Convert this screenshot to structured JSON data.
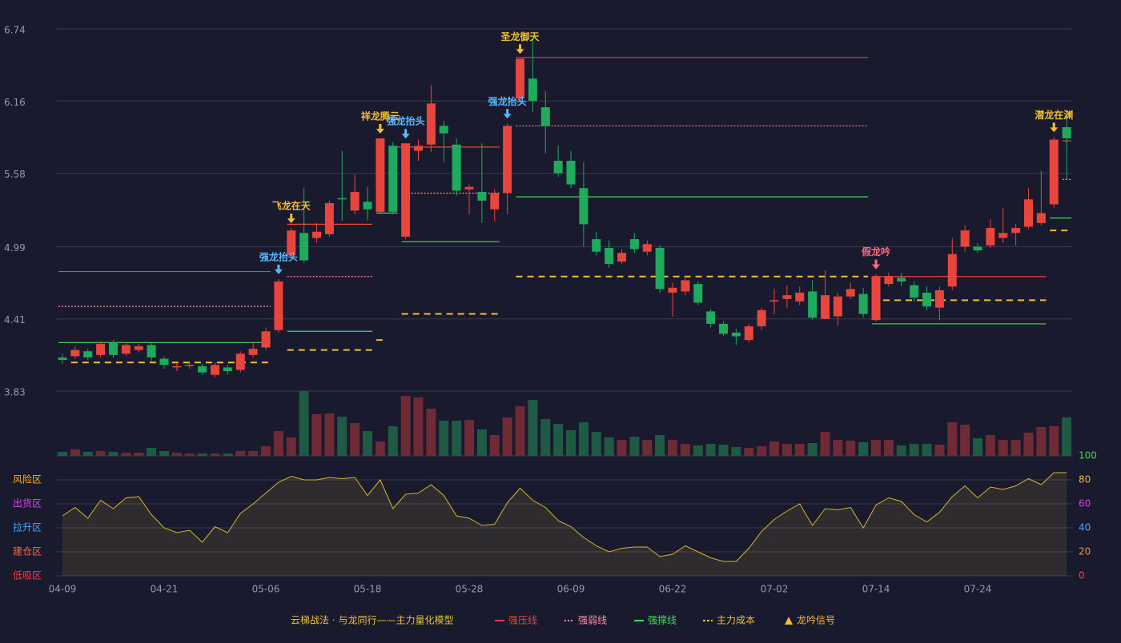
{
  "chart_data": {
    "type": "candlestick",
    "ylim": [
      3.83,
      6.74
    ],
    "yticks": [
      3.83,
      4.41,
      4.99,
      5.58,
      6.16,
      6.74
    ],
    "categories": [
      "04-09",
      null,
      null,
      null,
      null,
      null,
      null,
      null,
      "04-21",
      null,
      null,
      null,
      null,
      null,
      null,
      null,
      "05-06",
      null,
      null,
      null,
      null,
      null,
      null,
      null,
      "05-18",
      null,
      null,
      null,
      null,
      null,
      null,
      null,
      "05-28",
      null,
      null,
      null,
      null,
      null,
      null,
      null,
      "06-09",
      null,
      null,
      null,
      null,
      null,
      null,
      null,
      "06-22",
      null,
      null,
      null,
      null,
      null,
      null,
      null,
      "07-02",
      null,
      null,
      null,
      null,
      null,
      null,
      null,
      "07-14",
      null,
      null,
      null,
      null,
      null,
      null,
      null,
      "07-24",
      null,
      null,
      null,
      null,
      null,
      null,
      null
    ],
    "open": [
      4.1,
      4.11,
      4.15,
      4.12,
      4.22,
      4.13,
      4.16,
      4.2,
      4.09,
      4.02,
      4.03,
      4.03,
      3.96,
      4.02,
      4.0,
      4.12,
      4.18,
      4.32,
      4.92,
      5.1,
      5.06,
      5.09,
      5.38,
      5.28,
      5.35,
      5.27,
      5.8,
      5.07,
      5.76,
      5.81,
      5.96,
      5.81,
      5.45,
      5.43,
      5.29,
      5.42,
      6.18,
      6.34,
      6.11,
      5.68,
      5.68,
      5.46,
      5.05,
      4.98,
      4.87,
      5.05,
      4.95,
      4.98,
      4.62,
      4.63,
      4.69,
      4.47,
      4.37,
      4.3,
      4.24,
      4.35,
      4.55,
      4.57,
      4.55,
      4.63,
      4.41,
      4.43,
      4.59,
      4.61,
      4.4,
      4.69,
      4.74,
      4.68,
      4.62,
      4.5,
      4.67,
      4.99,
      4.99,
      5.0,
      5.06,
      5.1,
      5.15,
      5.18,
      5.33,
      5.95
    ],
    "high": [
      4.13,
      4.19,
      4.17,
      4.23,
      4.24,
      4.22,
      4.21,
      4.22,
      4.11,
      4.05,
      4.06,
      4.05,
      4.06,
      4.04,
      4.15,
      4.22,
      4.34,
      4.73,
      5.14,
      5.46,
      5.18,
      5.36,
      5.76,
      5.57,
      5.47,
      5.86,
      5.83,
      5.82,
      5.85,
      6.29,
      6.0,
      5.86,
      5.49,
      5.82,
      5.45,
      5.98,
      6.5,
      6.66,
      6.24,
      5.8,
      5.76,
      5.67,
      5.11,
      5.04,
      4.97,
      5.1,
      5.04,
      5.0,
      4.7,
      4.76,
      4.71,
      4.49,
      4.39,
      4.33,
      4.37,
      4.5,
      4.65,
      4.68,
      4.67,
      4.72,
      4.8,
      4.62,
      4.7,
      4.66,
      4.77,
      4.78,
      4.78,
      4.71,
      4.67,
      4.67,
      5.06,
      5.16,
      5.02,
      5.21,
      5.3,
      5.17,
      5.46,
      5.6,
      5.87,
      6.05
    ],
    "low": [
      4.05,
      4.09,
      4.08,
      4.1,
      4.1,
      4.11,
      4.14,
      4.07,
      4.01,
      3.99,
      4.01,
      3.96,
      3.94,
      3.96,
      3.98,
      4.1,
      4.16,
      4.3,
      4.89,
      4.86,
      5.02,
      5.07,
      5.2,
      5.25,
      5.2,
      5.25,
      5.25,
      5.05,
      5.68,
      5.75,
      5.67,
      5.4,
      5.25,
      5.18,
      5.19,
      5.25,
      6.15,
      6.07,
      5.74,
      5.55,
      5.46,
      4.99,
      4.92,
      4.82,
      4.85,
      4.94,
      4.92,
      4.62,
      4.43,
      4.6,
      4.52,
      4.34,
      4.27,
      4.2,
      4.22,
      4.32,
      4.45,
      4.5,
      4.52,
      4.4,
      4.41,
      4.36,
      4.57,
      4.42,
      4.39,
      4.67,
      4.67,
      4.55,
      4.48,
      4.4,
      4.64,
      4.95,
      4.94,
      4.98,
      5.02,
      5.0,
      5.13,
      5.16,
      5.3,
      5.53
    ],
    "close": [
      4.08,
      4.16,
      4.1,
      4.21,
      4.12,
      4.2,
      4.19,
      4.1,
      4.04,
      4.03,
      4.04,
      3.98,
      4.04,
      3.99,
      4.13,
      4.17,
      4.31,
      4.71,
      5.12,
      4.88,
      5.11,
      5.34,
      5.37,
      5.43,
      5.29,
      5.86,
      5.27,
      5.82,
      5.8,
      6.14,
      5.9,
      5.44,
      5.47,
      5.36,
      5.42,
      5.96,
      6.5,
      6.16,
      5.96,
      5.58,
      5.49,
      5.17,
      4.95,
      4.85,
      4.94,
      4.97,
      5.01,
      4.65,
      4.66,
      4.72,
      4.54,
      4.37,
      4.29,
      4.27,
      4.35,
      4.48,
      4.56,
      4.6,
      4.62,
      4.42,
      4.6,
      4.59,
      4.65,
      4.45,
      4.75,
      4.75,
      4.71,
      4.58,
      4.51,
      4.64,
      4.93,
      5.12,
      4.96,
      5.14,
      5.1,
      5.14,
      5.37,
      5.26,
      5.85,
      5.86
    ],
    "up_color": "#e8453c",
    "down_color": "#1fab5e",
    "volume_up_color": "#6e2b36",
    "volume_down_color": "#1f5a45",
    "volume_ylim": [
      0,
      81
    ],
    "volume": [
      5,
      8,
      5,
      6,
      5,
      4,
      4,
      10,
      6,
      4,
      3,
      3,
      3,
      3,
      6,
      6,
      12,
      31,
      23,
      81,
      52,
      53,
      49,
      41,
      31,
      18,
      37,
      75,
      73,
      59,
      44,
      44,
      45,
      33,
      26,
      48,
      62,
      70,
      46,
      40,
      32,
      42,
      30,
      23,
      20,
      24,
      20,
      26,
      20,
      15,
      13,
      15,
      14,
      11,
      10,
      12,
      18,
      15,
      15,
      16,
      30,
      20,
      19,
      17,
      20,
      20,
      13,
      15,
      15,
      14,
      42,
      39,
      22,
      26,
      20,
      20,
      29,
      36,
      37,
      48
    ],
    "indicator_ylim": [
      0,
      100
    ],
    "indicator_ticks": [
      0,
      20,
      40,
      60,
      80,
      100
    ],
    "indicator_tick_colors": [
      "#ff3b3b",
      "#ff8a3d",
      "#4aa8ff",
      "#e040fb",
      "#ffb020",
      "#33dd55"
    ],
    "indicator_color": "#d4b62a",
    "indicator": [
      50,
      57,
      48,
      63,
      56,
      65,
      66,
      51,
      40,
      36,
      38,
      28,
      41,
      36,
      52,
      60,
      69,
      78,
      83,
      80,
      80,
      82,
      81,
      82,
      67,
      80,
      56,
      68,
      69,
      76,
      67,
      50,
      48,
      42,
      43,
      61,
      73,
      63,
      57,
      46,
      41,
      32,
      25,
      20,
      23,
      24,
      24,
      16,
      18,
      25,
      20,
      15,
      12,
      12,
      23,
      37,
      47,
      54,
      60,
      42,
      56,
      55,
      57,
      40,
      59,
      65,
      62,
      51,
      45,
      53,
      66,
      75,
      65,
      74,
      72,
      75,
      81,
      76,
      86,
      86
    ],
    "zones": [
      {
        "label": "风险区",
        "value": 80,
        "color": "#ffb020"
      },
      {
        "label": "出货区",
        "value": 60,
        "color": "#e040fb"
      },
      {
        "label": "拉升区",
        "value": 40,
        "color": "#4aa8ff"
      },
      {
        "label": "建仓区",
        "value": 20,
        "color": "#ff6a3d"
      },
      {
        "label": "低吸区",
        "value": 0,
        "color": "#ff3b3b"
      }
    ],
    "levels": [
      {
        "name": "强压线",
        "color": "#e8453c",
        "dash": "",
        "segments": [
          {
            "from": 0,
            "to": 16,
            "value": 4.79
          },
          {
            "from": 18,
            "to": 24,
            "value": 5.17
          },
          {
            "from": 26,
            "to": 34,
            "value": 5.79
          },
          {
            "from": 36,
            "to": 63,
            "value": 6.51
          },
          {
            "from": 64,
            "to": 77,
            "value": 4.75
          },
          {
            "from": 79,
            "to": 79,
            "value": 5.84
          }
        ]
      },
      {
        "name": "强弱线",
        "color": "#ff8fa0",
        "dash": "2,2",
        "segments": [
          {
            "from": 0,
            "to": 16,
            "value": 4.51
          },
          {
            "from": 18,
            "to": 24,
            "value": 4.75
          },
          {
            "from": 27,
            "to": 34,
            "value": 5.42
          },
          {
            "from": 36,
            "to": 63,
            "value": 5.96
          },
          {
            "from": 79,
            "to": 79,
            "value": 5.53
          }
        ]
      },
      {
        "name": "强撑线",
        "color": "#44dd55",
        "dash": "",
        "segments": [
          {
            "from": 0,
            "to": 16,
            "value": 4.22
          },
          {
            "from": 18,
            "to": 24,
            "value": 4.31
          },
          {
            "from": 25,
            "to": 26,
            "value": 5.26
          },
          {
            "from": 27,
            "to": 34,
            "value": 5.03
          },
          {
            "from": 36,
            "to": 63,
            "value": 5.39
          },
          {
            "from": 64,
            "to": 77,
            "value": 4.37
          },
          {
            "from": 78,
            "to": 79,
            "value": 5.22
          }
        ]
      },
      {
        "name": "主力成本",
        "color": "#f0c030",
        "dash": "8,6",
        "segments": [
          {
            "from": 1,
            "to": 16,
            "value": 4.06
          },
          {
            "from": 18,
            "to": 24,
            "value": 4.16
          },
          {
            "from": 25,
            "to": 25,
            "value": 4.24
          },
          {
            "from": 27,
            "to": 34,
            "value": 4.45
          },
          {
            "from": 36,
            "to": 63,
            "value": 4.75
          },
          {
            "from": 64,
            "to": 77,
            "value": 4.56
          },
          {
            "from": 78,
            "to": 79,
            "value": 5.12
          }
        ]
      }
    ],
    "signals": [
      {
        "text": "强龙抬头",
        "index": 17,
        "color": "#5ab8ff"
      },
      {
        "text": "飞龙在天",
        "index": 18,
        "color": "#f0c030"
      },
      {
        "text": "祥龙腾云",
        "index": 25,
        "color": "#f0c030"
      },
      {
        "text": "强龙抬头",
        "index": 27,
        "color": "#5ab8ff"
      },
      {
        "text": "强龙抬头",
        "index": 35,
        "color": "#5ab8ff"
      },
      {
        "text": "圣龙御天",
        "index": 36,
        "color": "#f0c030"
      },
      {
        "text": "假龙吟",
        "index": 64,
        "color": "#ff6b7a"
      },
      {
        "text": "潜龙在渊",
        "index": 78,
        "color": "#f0c030"
      }
    ],
    "model_title": "云梯战法 · 与龙同行——主力量化模型",
    "signal_name": "龙吟信号",
    "signal_color": "#f0c030"
  }
}
